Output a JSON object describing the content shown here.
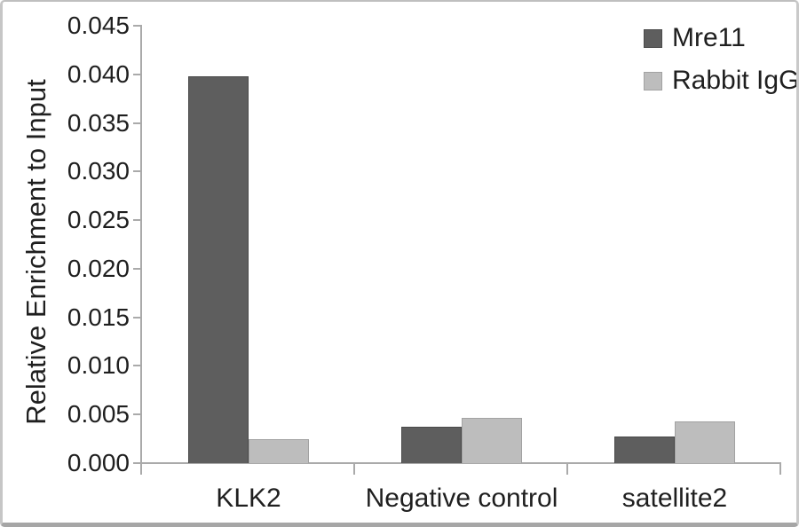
{
  "chart_data": {
    "type": "bar",
    "title": "",
    "xlabel": "",
    "ylabel": "Relative Enrichment to Input",
    "categories": [
      "KLK2",
      "Negative control",
      "satellite2"
    ],
    "series": [
      {
        "name": "Mre11",
        "color": "#5e5e5e",
        "border_color": "#4a4a4a",
        "values": [
          0.0398,
          0.0037,
          0.0027
        ]
      },
      {
        "name": "Rabbit IgG",
        "color": "#bdbdbd",
        "border_color": "#a2a2a2",
        "values": [
          0.0025,
          0.0047,
          0.0043
        ]
      }
    ],
    "ylim": [
      0,
      0.045
    ],
    "y_tick_step": 0.005,
    "y_tick_labels": [
      "0.000",
      "0.005",
      "0.010",
      "0.015",
      "0.020",
      "0.025",
      "0.030",
      "0.035",
      "0.040",
      "0.045"
    ],
    "grid": false,
    "legend_position": "top-right",
    "axis_color": "#aaaaaa",
    "text_color": "#1f1f1f",
    "background_color": "#ffffff"
  }
}
